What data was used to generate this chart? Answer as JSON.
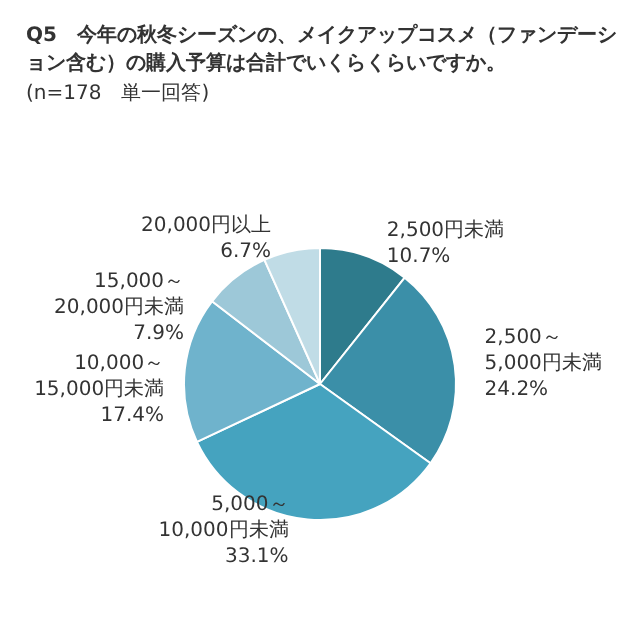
{
  "chart_data": {
    "type": "pie",
    "title": "Q5　今年の秋冬シーズンの、メイクアップコスメ（ファンデーション含む）の購入予算は合計でいくらくらいですか。",
    "subtitle": "(n=178　単一回答)",
    "categories": [
      "2,500円未満",
      "2,500～\n5,000円未満",
      "5,000～\n10,000円未満",
      "10,000～\n15,000円未満",
      "15,000～\n20,000円未満",
      "20,000円以上"
    ],
    "values": [
      10.7,
      24.2,
      33.1,
      17.4,
      7.9,
      6.7
    ],
    "colors": [
      "#2e7b8c",
      "#3b8fa8",
      "#45a3bf",
      "#6fb3cc",
      "#9dc8d8",
      "#c0dce6"
    ],
    "value_labels": [
      "10.7%",
      "24.2%",
      "33.1%",
      "17.4%",
      "7.9%",
      "6.7%"
    ],
    "legend": false
  }
}
